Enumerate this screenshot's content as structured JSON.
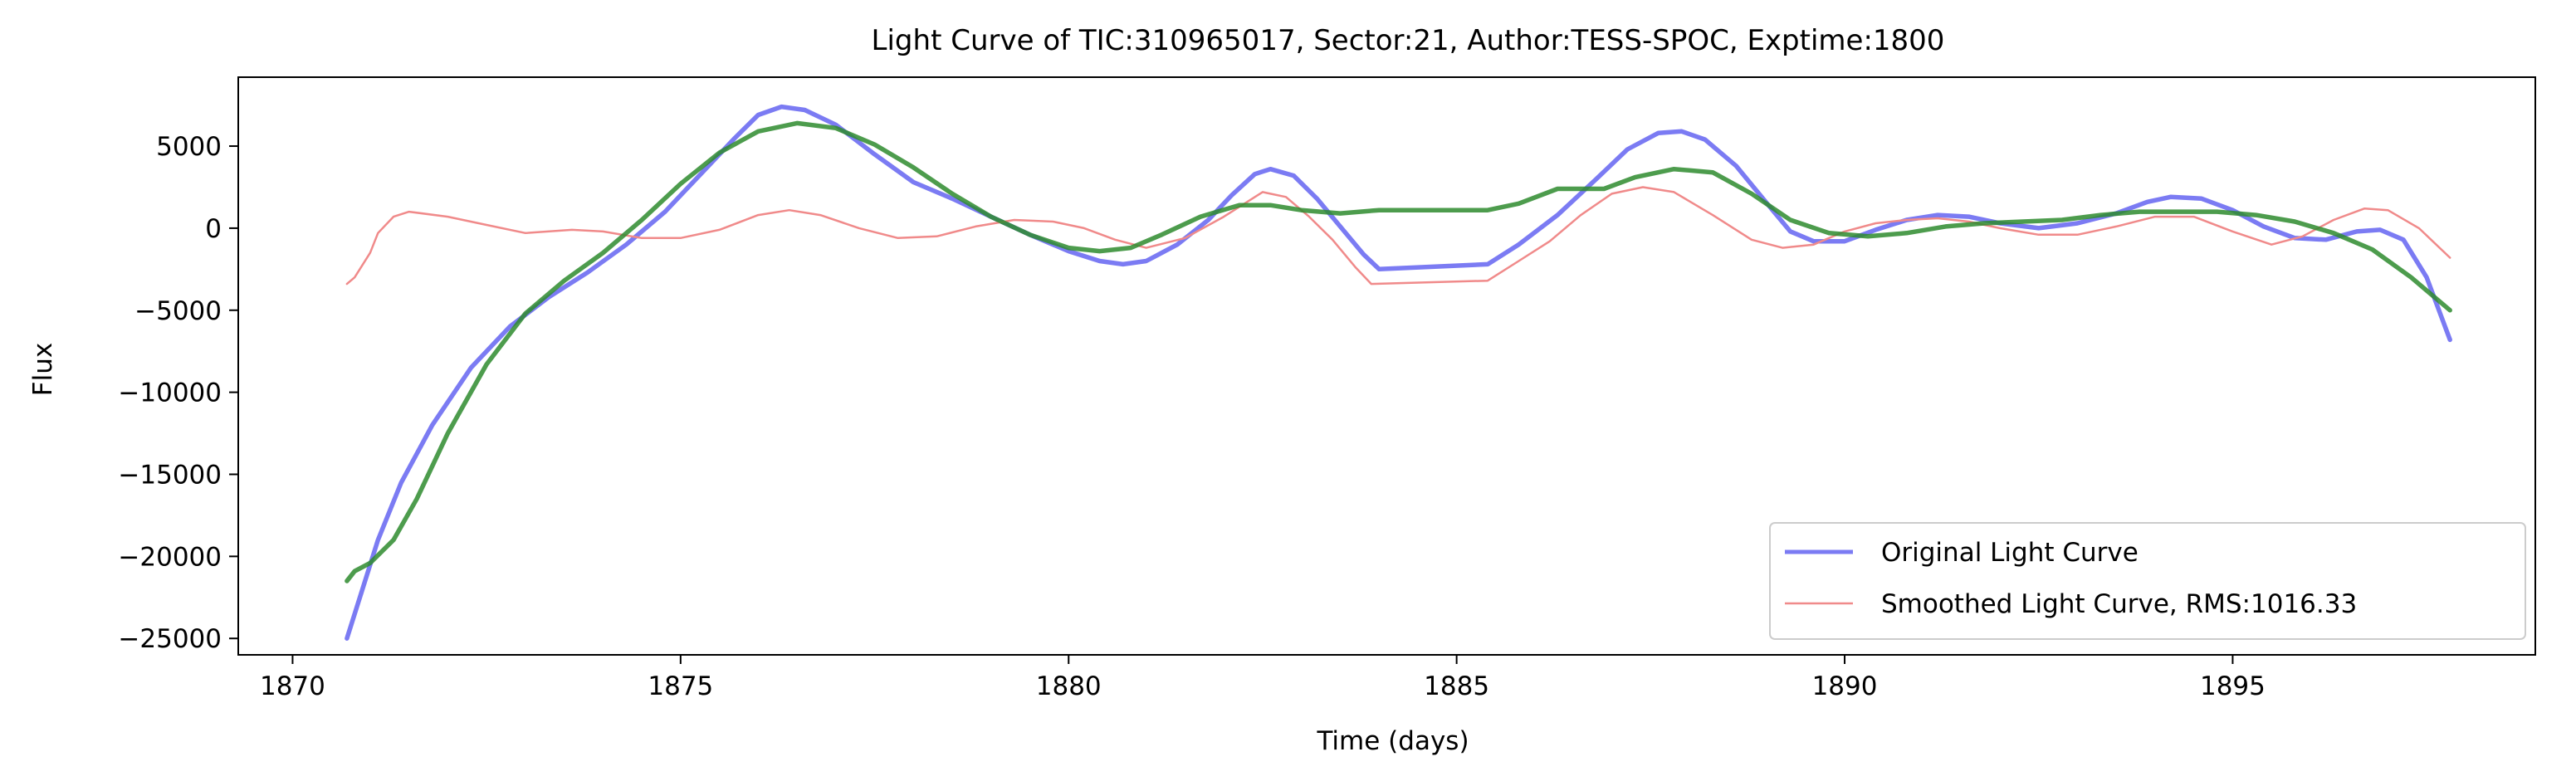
{
  "chart_data": {
    "type": "line",
    "title": "Light Curve of TIC:310965017, Sector:21, Author:TESS-SPOC, Exptime:1800",
    "xlabel": "Time (days)",
    "ylabel": "Flux",
    "xlim": [
      1869.3,
      1898.9
    ],
    "ylim": [
      -26000,
      9200
    ],
    "xticks": [
      1870,
      1875,
      1880,
      1885,
      1890,
      1895
    ],
    "xtick_labels": [
      "1870",
      "1875",
      "1880",
      "1885",
      "1890",
      "1895"
    ],
    "yticks": [
      -25000,
      -20000,
      -15000,
      -10000,
      -5000,
      0,
      5000
    ],
    "ytick_labels": [
      "−25000",
      "−20000",
      "−15000",
      "−10000",
      "−5000",
      "0",
      "5000"
    ],
    "grid": false,
    "legend_position": "lower-right",
    "legend": [
      {
        "label": "Original Light Curve",
        "color": "#7b7bf3"
      },
      {
        "label": "Smoothed Light Curve, RMS:1016.33",
        "color": "#f08a8a"
      }
    ],
    "series": [
      {
        "name": "Original Light Curve",
        "color": "#7b7bf3",
        "points": [
          [
            1870.7,
            -25000
          ],
          [
            1870.9,
            -22000
          ],
          [
            1871.1,
            -19000
          ],
          [
            1871.4,
            -15500
          ],
          [
            1871.8,
            -12000
          ],
          [
            1872.3,
            -8500
          ],
          [
            1872.8,
            -6000
          ],
          [
            1873.3,
            -4200
          ],
          [
            1873.8,
            -2700
          ],
          [
            1874.3,
            -1000
          ],
          [
            1874.8,
            1000
          ],
          [
            1875.3,
            3500
          ],
          [
            1875.7,
            5500
          ],
          [
            1876.0,
            6900
          ],
          [
            1876.3,
            7400
          ],
          [
            1876.6,
            7200
          ],
          [
            1877.0,
            6300
          ],
          [
            1877.5,
            4500
          ],
          [
            1878.0,
            2800
          ],
          [
            1878.5,
            1800
          ],
          [
            1879.0,
            700
          ],
          [
            1879.5,
            -400
          ],
          [
            1880.0,
            -1400
          ],
          [
            1880.4,
            -2000
          ],
          [
            1880.7,
            -2200
          ],
          [
            1881.0,
            -2000
          ],
          [
            1881.4,
            -1000
          ],
          [
            1881.8,
            500
          ],
          [
            1882.1,
            2000
          ],
          [
            1882.4,
            3300
          ],
          [
            1882.6,
            3600
          ],
          [
            1882.9,
            3200
          ],
          [
            1883.2,
            1800
          ],
          [
            1883.5,
            100
          ],
          [
            1883.8,
            -1600
          ],
          [
            1884.0,
            -2500
          ],
          [
            1885.4,
            -2200
          ],
          [
            1885.8,
            -1000
          ],
          [
            1886.3,
            800
          ],
          [
            1886.8,
            3000
          ],
          [
            1887.2,
            4800
          ],
          [
            1887.6,
            5800
          ],
          [
            1887.9,
            5900
          ],
          [
            1888.2,
            5400
          ],
          [
            1888.6,
            3800
          ],
          [
            1889.0,
            1500
          ],
          [
            1889.3,
            -200
          ],
          [
            1889.6,
            -800
          ],
          [
            1890.0,
            -800
          ],
          [
            1890.4,
            -100
          ],
          [
            1890.8,
            500
          ],
          [
            1891.2,
            800
          ],
          [
            1891.6,
            700
          ],
          [
            1892.0,
            300
          ],
          [
            1892.5,
            0
          ],
          [
            1893.0,
            300
          ],
          [
            1893.5,
            900
          ],
          [
            1893.9,
            1600
          ],
          [
            1894.2,
            1900
          ],
          [
            1894.6,
            1800
          ],
          [
            1895.0,
            1100
          ],
          [
            1895.4,
            100
          ],
          [
            1895.8,
            -600
          ],
          [
            1896.2,
            -700
          ],
          [
            1896.6,
            -200
          ],
          [
            1896.9,
            -100
          ],
          [
            1897.2,
            -700
          ],
          [
            1897.5,
            -3000
          ],
          [
            1897.8,
            -6800
          ]
        ]
      },
      {
        "name": "Smoothed Light Curve, RMS:1016.33",
        "color": "#f08a8a",
        "points": [
          [
            1870.7,
            -3400
          ],
          [
            1870.8,
            -3000
          ],
          [
            1871.0,
            -1500
          ],
          [
            1871.1,
            -300
          ],
          [
            1871.3,
            700
          ],
          [
            1871.5,
            1000
          ],
          [
            1872.0,
            700
          ],
          [
            1872.5,
            200
          ],
          [
            1873.0,
            -300
          ],
          [
            1873.6,
            -100
          ],
          [
            1874.0,
            -200
          ],
          [
            1874.5,
            -600
          ],
          [
            1875.0,
            -600
          ],
          [
            1875.5,
            -100
          ],
          [
            1876.0,
            800
          ],
          [
            1876.4,
            1100
          ],
          [
            1876.8,
            800
          ],
          [
            1877.3,
            0
          ],
          [
            1877.8,
            -600
          ],
          [
            1878.3,
            -500
          ],
          [
            1878.8,
            100
          ],
          [
            1879.3,
            500
          ],
          [
            1879.8,
            400
          ],
          [
            1880.2,
            0
          ],
          [
            1880.6,
            -700
          ],
          [
            1881.0,
            -1200
          ],
          [
            1881.5,
            -600
          ],
          [
            1882.0,
            700
          ],
          [
            1882.5,
            2200
          ],
          [
            1882.8,
            1900
          ],
          [
            1883.1,
            700
          ],
          [
            1883.4,
            -700
          ],
          [
            1883.7,
            -2400
          ],
          [
            1883.9,
            -3400
          ],
          [
            1885.4,
            -3200
          ],
          [
            1885.8,
            -2000
          ],
          [
            1886.2,
            -800
          ],
          [
            1886.6,
            800
          ],
          [
            1887.0,
            2100
          ],
          [
            1887.4,
            2500
          ],
          [
            1887.8,
            2200
          ],
          [
            1888.3,
            800
          ],
          [
            1888.8,
            -700
          ],
          [
            1889.2,
            -1200
          ],
          [
            1889.6,
            -1000
          ],
          [
            1890.0,
            -200
          ],
          [
            1890.4,
            300
          ],
          [
            1890.8,
            500
          ],
          [
            1891.2,
            600
          ],
          [
            1891.6,
            400
          ],
          [
            1892.0,
            0
          ],
          [
            1892.5,
            -400
          ],
          [
            1893.0,
            -400
          ],
          [
            1893.5,
            100
          ],
          [
            1894.0,
            700
          ],
          [
            1894.5,
            700
          ],
          [
            1895.0,
            -200
          ],
          [
            1895.5,
            -1000
          ],
          [
            1895.9,
            -500
          ],
          [
            1896.3,
            500
          ],
          [
            1896.7,
            1200
          ],
          [
            1897.0,
            1100
          ],
          [
            1897.4,
            0
          ],
          [
            1897.8,
            -1800
          ]
        ]
      },
      {
        "color": "#2e8b2e",
        "points": [
          [
            1870.7,
            -21500
          ],
          [
            1870.8,
            -20900
          ],
          [
            1871.0,
            -20400
          ],
          [
            1871.3,
            -19000
          ],
          [
            1871.6,
            -16500
          ],
          [
            1872.0,
            -12500
          ],
          [
            1872.5,
            -8300
          ],
          [
            1873.0,
            -5200
          ],
          [
            1873.5,
            -3200
          ],
          [
            1874.0,
            -1500
          ],
          [
            1874.5,
            500
          ],
          [
            1875.0,
            2700
          ],
          [
            1875.5,
            4600
          ],
          [
            1876.0,
            5900
          ],
          [
            1876.5,
            6400
          ],
          [
            1877.0,
            6100
          ],
          [
            1877.5,
            5100
          ],
          [
            1878.0,
            3700
          ],
          [
            1878.5,
            2100
          ],
          [
            1879.0,
            700
          ],
          [
            1879.5,
            -400
          ],
          [
            1880.0,
            -1200
          ],
          [
            1880.4,
            -1400
          ],
          [
            1880.8,
            -1200
          ],
          [
            1881.2,
            -400
          ],
          [
            1881.7,
            700
          ],
          [
            1882.2,
            1400
          ],
          [
            1882.6,
            1400
          ],
          [
            1883.0,
            1100
          ],
          [
            1883.5,
            900
          ],
          [
            1884.0,
            1100
          ],
          [
            1885.4,
            1100
          ],
          [
            1885.8,
            1500
          ],
          [
            1886.3,
            2400
          ],
          [
            1886.9,
            2400
          ],
          [
            1887.3,
            3100
          ],
          [
            1887.8,
            3600
          ],
          [
            1888.3,
            3400
          ],
          [
            1888.8,
            2100
          ],
          [
            1889.3,
            500
          ],
          [
            1889.8,
            -300
          ],
          [
            1890.3,
            -500
          ],
          [
            1890.8,
            -300
          ],
          [
            1891.3,
            100
          ],
          [
            1891.8,
            300
          ],
          [
            1892.3,
            400
          ],
          [
            1892.8,
            500
          ],
          [
            1893.3,
            800
          ],
          [
            1893.8,
            1000
          ],
          [
            1894.3,
            1000
          ],
          [
            1894.8,
            1000
          ],
          [
            1895.3,
            800
          ],
          [
            1895.8,
            400
          ],
          [
            1896.3,
            -300
          ],
          [
            1896.8,
            -1300
          ],
          [
            1897.3,
            -3000
          ],
          [
            1897.8,
            -5000
          ]
        ]
      }
    ]
  }
}
